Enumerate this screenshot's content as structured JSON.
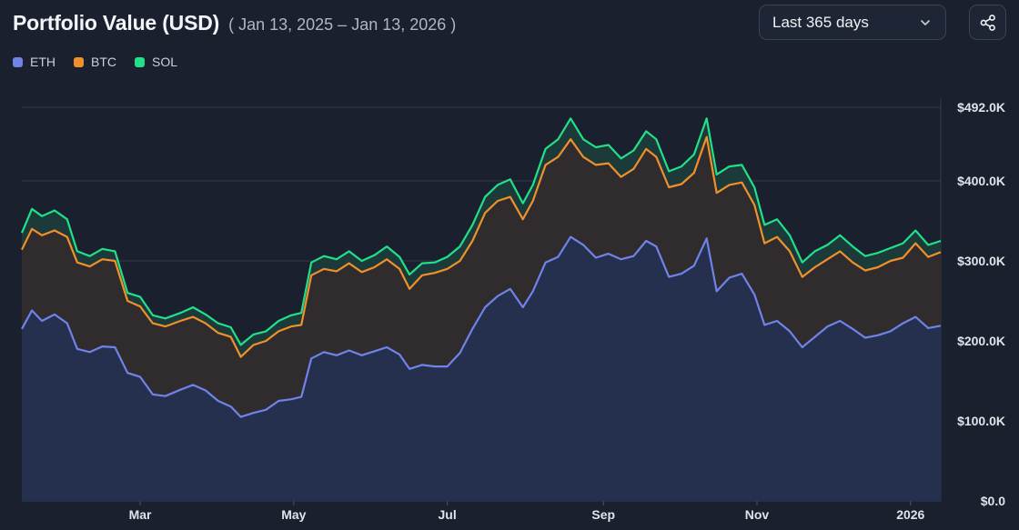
{
  "header": {
    "title": "Portfolio Value (USD)",
    "date_range": "( Jan 13, 2025 – Jan 13, 2026 )"
  },
  "controls": {
    "range_select": "Last 365 days",
    "share_icon": "share-icon"
  },
  "chart_data": {
    "type": "area",
    "stacked": true,
    "x_type": "date",
    "x_range": [
      "2025-01-13",
      "2026-01-13"
    ],
    "x_ticks": [
      {
        "label": "Mar",
        "date": "2025-03-01"
      },
      {
        "label": "May",
        "date": "2025-05-01"
      },
      {
        "label": "Jul",
        "date": "2025-07-01"
      },
      {
        "label": "Sep",
        "date": "2025-09-01"
      },
      {
        "label": "Nov",
        "date": "2025-11-01"
      },
      {
        "label": "2026",
        "date": "2026-01-01"
      }
    ],
    "y_ticks": [
      {
        "label": "$0.0",
        "value": 0
      },
      {
        "label": "$100.0K",
        "value": 100000
      },
      {
        "label": "$200.0K",
        "value": 200000
      },
      {
        "label": "$300.0K",
        "value": 300000
      },
      {
        "label": "$400.0K",
        "value": 400000
      },
      {
        "label": "$492.0K",
        "value": 492000
      }
    ],
    "ylim": [
      0,
      492000
    ],
    "grid": true,
    "legend_position": "top-left",
    "series": [
      {
        "name": "ETH",
        "color": "#6f83e8",
        "points": [
          [
            "2025-01-13",
            215000
          ],
          [
            "2025-01-17",
            238000
          ],
          [
            "2025-01-21",
            225000
          ],
          [
            "2025-01-26",
            233000
          ],
          [
            "2025-01-31",
            222000
          ],
          [
            "2025-02-04",
            190000
          ],
          [
            "2025-02-09",
            186000
          ],
          [
            "2025-02-14",
            193000
          ],
          [
            "2025-02-19",
            192000
          ],
          [
            "2025-02-24",
            160000
          ],
          [
            "2025-03-01",
            155000
          ],
          [
            "2025-03-06",
            133000
          ],
          [
            "2025-03-11",
            131000
          ],
          [
            "2025-03-17",
            139000
          ],
          [
            "2025-03-22",
            145000
          ],
          [
            "2025-03-27",
            138000
          ],
          [
            "2025-04-01",
            125000
          ],
          [
            "2025-04-06",
            118000
          ],
          [
            "2025-04-10",
            105000
          ],
          [
            "2025-04-15",
            110000
          ],
          [
            "2025-04-20",
            114000
          ],
          [
            "2025-04-25",
            125000
          ],
          [
            "2025-04-30",
            127000
          ],
          [
            "2025-05-04",
            130000
          ],
          [
            "2025-05-08",
            178000
          ],
          [
            "2025-05-13",
            186000
          ],
          [
            "2025-05-18",
            182000
          ],
          [
            "2025-05-23",
            188000
          ],
          [
            "2025-05-28",
            182000
          ],
          [
            "2025-06-02",
            187000
          ],
          [
            "2025-06-07",
            192000
          ],
          [
            "2025-06-12",
            183000
          ],
          [
            "2025-06-16",
            165000
          ],
          [
            "2025-06-21",
            170000
          ],
          [
            "2025-06-26",
            168000
          ],
          [
            "2025-07-01",
            168000
          ],
          [
            "2025-07-06",
            185000
          ],
          [
            "2025-07-11",
            215000
          ],
          [
            "2025-07-16",
            242000
          ],
          [
            "2025-07-21",
            256000
          ],
          [
            "2025-07-26",
            265000
          ],
          [
            "2025-07-31",
            242000
          ],
          [
            "2025-08-04",
            262000
          ],
          [
            "2025-08-09",
            298000
          ],
          [
            "2025-08-14",
            305000
          ],
          [
            "2025-08-19",
            330000
          ],
          [
            "2025-08-24",
            320000
          ],
          [
            "2025-08-29",
            304000
          ],
          [
            "2025-09-03",
            309000
          ],
          [
            "2025-09-08",
            302000
          ],
          [
            "2025-09-13",
            306000
          ],
          [
            "2025-09-18",
            325000
          ],
          [
            "2025-09-22",
            318000
          ],
          [
            "2025-09-27",
            280000
          ],
          [
            "2025-10-02",
            284000
          ],
          [
            "2025-10-07",
            294000
          ],
          [
            "2025-10-12",
            328000
          ],
          [
            "2025-10-16",
            262000
          ],
          [
            "2025-10-21",
            279000
          ],
          [
            "2025-10-26",
            284000
          ],
          [
            "2025-10-31",
            258000
          ],
          [
            "2025-11-04",
            220000
          ],
          [
            "2025-11-09",
            225000
          ],
          [
            "2025-11-14",
            212000
          ],
          [
            "2025-11-19",
            192000
          ],
          [
            "2025-11-24",
            205000
          ],
          [
            "2025-11-29",
            218000
          ],
          [
            "2025-12-04",
            225000
          ],
          [
            "2025-12-09",
            215000
          ],
          [
            "2025-12-14",
            204000
          ],
          [
            "2025-12-19",
            207000
          ],
          [
            "2025-12-24",
            212000
          ],
          [
            "2025-12-29",
            222000
          ],
          [
            "2026-01-03",
            230000
          ],
          [
            "2026-01-08",
            216000
          ],
          [
            "2026-01-13",
            219000
          ]
        ]
      },
      {
        "name": "BTC",
        "color": "#f0902a",
        "points": [
          [
            "2025-01-13",
            314000
          ],
          [
            "2025-01-17",
            340000
          ],
          [
            "2025-01-21",
            332000
          ],
          [
            "2025-01-26",
            338000
          ],
          [
            "2025-01-31",
            330000
          ],
          [
            "2025-02-04",
            298000
          ],
          [
            "2025-02-09",
            293000
          ],
          [
            "2025-02-14",
            302000
          ],
          [
            "2025-02-19",
            300000
          ],
          [
            "2025-02-24",
            250000
          ],
          [
            "2025-03-01",
            243000
          ],
          [
            "2025-03-06",
            222000
          ],
          [
            "2025-03-11",
            218000
          ],
          [
            "2025-03-17",
            225000
          ],
          [
            "2025-03-22",
            230000
          ],
          [
            "2025-03-27",
            222000
          ],
          [
            "2025-04-01",
            210000
          ],
          [
            "2025-04-06",
            205000
          ],
          [
            "2025-04-10",
            180000
          ],
          [
            "2025-04-15",
            195000
          ],
          [
            "2025-04-20",
            200000
          ],
          [
            "2025-04-25",
            212000
          ],
          [
            "2025-04-30",
            218000
          ],
          [
            "2025-05-04",
            220000
          ],
          [
            "2025-05-08",
            282000
          ],
          [
            "2025-05-13",
            290000
          ],
          [
            "2025-05-18",
            287000
          ],
          [
            "2025-05-23",
            297000
          ],
          [
            "2025-05-28",
            286000
          ],
          [
            "2025-06-02",
            292000
          ],
          [
            "2025-06-07",
            302000
          ],
          [
            "2025-06-12",
            290000
          ],
          [
            "2025-06-16",
            265000
          ],
          [
            "2025-06-21",
            282000
          ],
          [
            "2025-06-26",
            285000
          ],
          [
            "2025-07-01",
            290000
          ],
          [
            "2025-07-06",
            300000
          ],
          [
            "2025-07-11",
            325000
          ],
          [
            "2025-07-16",
            360000
          ],
          [
            "2025-07-21",
            375000
          ],
          [
            "2025-07-26",
            380000
          ],
          [
            "2025-07-31",
            352000
          ],
          [
            "2025-08-04",
            375000
          ],
          [
            "2025-08-09",
            420000
          ],
          [
            "2025-08-14",
            430000
          ],
          [
            "2025-08-19",
            452000
          ],
          [
            "2025-08-24",
            430000
          ],
          [
            "2025-08-29",
            420000
          ],
          [
            "2025-09-03",
            422000
          ],
          [
            "2025-09-08",
            405000
          ],
          [
            "2025-09-13",
            415000
          ],
          [
            "2025-09-18",
            440000
          ],
          [
            "2025-09-22",
            430000
          ],
          [
            "2025-09-27",
            392000
          ],
          [
            "2025-10-02",
            396000
          ],
          [
            "2025-10-07",
            410000
          ],
          [
            "2025-10-12",
            455000
          ],
          [
            "2025-10-16",
            385000
          ],
          [
            "2025-10-21",
            395000
          ],
          [
            "2025-10-26",
            398000
          ],
          [
            "2025-10-31",
            370000
          ],
          [
            "2025-11-04",
            322000
          ],
          [
            "2025-11-09",
            330000
          ],
          [
            "2025-11-14",
            312000
          ],
          [
            "2025-11-19",
            280000
          ],
          [
            "2025-11-24",
            292000
          ],
          [
            "2025-11-29",
            302000
          ],
          [
            "2025-12-04",
            312000
          ],
          [
            "2025-12-09",
            298000
          ],
          [
            "2025-12-14",
            288000
          ],
          [
            "2025-12-19",
            292000
          ],
          [
            "2025-12-24",
            300000
          ],
          [
            "2025-12-29",
            304000
          ],
          [
            "2026-01-03",
            322000
          ],
          [
            "2026-01-08",
            305000
          ],
          [
            "2026-01-13",
            311000
          ]
        ]
      },
      {
        "name": "SOL",
        "color": "#22e08a",
        "points": [
          [
            "2025-01-13",
            335000
          ],
          [
            "2025-01-17",
            365000
          ],
          [
            "2025-01-21",
            356000
          ],
          [
            "2025-01-26",
            363000
          ],
          [
            "2025-01-31",
            352000
          ],
          [
            "2025-02-04",
            312000
          ],
          [
            "2025-02-09",
            306000
          ],
          [
            "2025-02-14",
            315000
          ],
          [
            "2025-02-19",
            312000
          ],
          [
            "2025-02-24",
            260000
          ],
          [
            "2025-03-01",
            255000
          ],
          [
            "2025-03-06",
            232000
          ],
          [
            "2025-03-11",
            228000
          ],
          [
            "2025-03-17",
            235000
          ],
          [
            "2025-03-22",
            242000
          ],
          [
            "2025-03-27",
            233000
          ],
          [
            "2025-04-01",
            222000
          ],
          [
            "2025-04-06",
            217000
          ],
          [
            "2025-04-10",
            195000
          ],
          [
            "2025-04-15",
            208000
          ],
          [
            "2025-04-20",
            212000
          ],
          [
            "2025-04-25",
            225000
          ],
          [
            "2025-04-30",
            232000
          ],
          [
            "2025-05-04",
            235000
          ],
          [
            "2025-05-08",
            298000
          ],
          [
            "2025-05-13",
            306000
          ],
          [
            "2025-05-18",
            302000
          ],
          [
            "2025-05-23",
            312000
          ],
          [
            "2025-05-28",
            300000
          ],
          [
            "2025-06-02",
            307000
          ],
          [
            "2025-06-07",
            318000
          ],
          [
            "2025-06-12",
            305000
          ],
          [
            "2025-06-16",
            283000
          ],
          [
            "2025-06-21",
            297000
          ],
          [
            "2025-06-26",
            298000
          ],
          [
            "2025-07-01",
            305000
          ],
          [
            "2025-07-06",
            318000
          ],
          [
            "2025-07-11",
            345000
          ],
          [
            "2025-07-16",
            380000
          ],
          [
            "2025-07-21",
            395000
          ],
          [
            "2025-07-26",
            402000
          ],
          [
            "2025-07-31",
            372000
          ],
          [
            "2025-08-04",
            395000
          ],
          [
            "2025-08-09",
            440000
          ],
          [
            "2025-08-14",
            452000
          ],
          [
            "2025-08-19",
            478000
          ],
          [
            "2025-08-24",
            452000
          ],
          [
            "2025-08-29",
            442000
          ],
          [
            "2025-09-03",
            445000
          ],
          [
            "2025-09-08",
            428000
          ],
          [
            "2025-09-13",
            438000
          ],
          [
            "2025-09-18",
            462000
          ],
          [
            "2025-09-22",
            452000
          ],
          [
            "2025-09-27",
            412000
          ],
          [
            "2025-10-02",
            418000
          ],
          [
            "2025-10-07",
            433000
          ],
          [
            "2025-10-12",
            478000
          ],
          [
            "2025-10-16",
            408000
          ],
          [
            "2025-10-21",
            418000
          ],
          [
            "2025-10-26",
            420000
          ],
          [
            "2025-10-31",
            392000
          ],
          [
            "2025-11-04",
            345000
          ],
          [
            "2025-11-09",
            352000
          ],
          [
            "2025-11-14",
            332000
          ],
          [
            "2025-11-19",
            298000
          ],
          [
            "2025-11-24",
            312000
          ],
          [
            "2025-11-29",
            320000
          ],
          [
            "2025-12-04",
            332000
          ],
          [
            "2025-12-09",
            318000
          ],
          [
            "2025-12-14",
            306000
          ],
          [
            "2025-12-19",
            310000
          ],
          [
            "2025-12-24",
            316000
          ],
          [
            "2025-12-29",
            322000
          ],
          [
            "2026-01-03",
            338000
          ],
          [
            "2026-01-08",
            320000
          ],
          [
            "2026-01-13",
            325000
          ]
        ]
      }
    ]
  }
}
